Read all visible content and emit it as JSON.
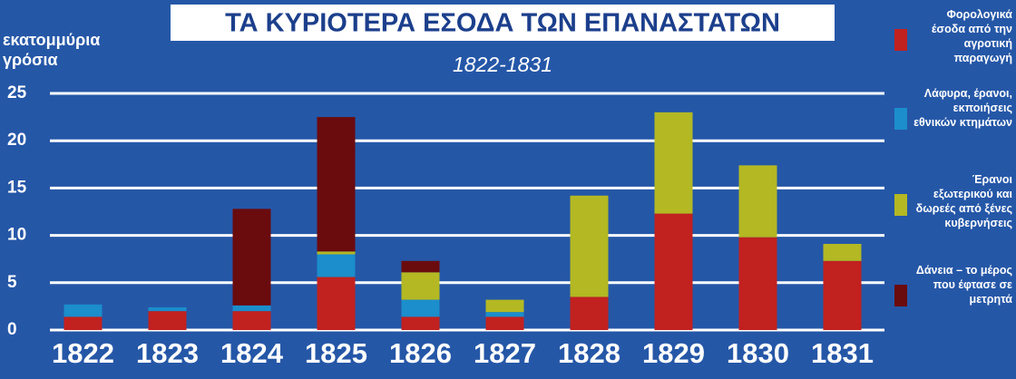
{
  "chart_data": {
    "type": "stacked-bar",
    "title": "ΤΑ ΚΥΡΙΟΤΕΡΑ ΕΣΟΔΑ ΤΩΝ ΕΠΑΝΑΣΤΑΤΩΝ",
    "subtitle": "1822-1831",
    "y_label": "εκατομμύρια γρόσια",
    "categories": [
      "1822",
      "1823",
      "1824",
      "1825",
      "1826",
      "1827",
      "1828",
      "1829",
      "1830",
      "1831"
    ],
    "series": [
      {
        "name": "Φορολογικά έσοδα από την αγροτική παραγωγή",
        "color": "#c1211f",
        "values": [
          1.4,
          2.0,
          2.0,
          5.6,
          1.4,
          1.4,
          3.5,
          12.3,
          9.8,
          7.3
        ]
      },
      {
        "name": "Λάφυρα, έρανοι, εκποιήσεις εθνικών κτημάτων",
        "color": "#1b8ecb",
        "values": [
          1.3,
          0.4,
          0.6,
          2.4,
          1.8,
          0.5,
          0,
          0,
          0,
          0
        ]
      },
      {
        "name": "Έρανοι εξωτερικού και δωρεές από ξένες κυβερνήσεις",
        "color": "#b3b823",
        "values": [
          0,
          0,
          0,
          0.3,
          2.9,
          1.3,
          10.7,
          10.7,
          7.6,
          1.8
        ]
      },
      {
        "name": "Δάνεια – το μέρος που έφτασε σε μετρητά",
        "color": "#6a0b0e",
        "values": [
          0,
          0,
          10.2,
          14.2,
          1.2,
          0,
          0,
          0,
          0,
          0
        ]
      }
    ],
    "ylim": [
      0,
      25
    ],
    "yticks": [
      0,
      5,
      10,
      15,
      20,
      25
    ],
    "grid": true
  }
}
